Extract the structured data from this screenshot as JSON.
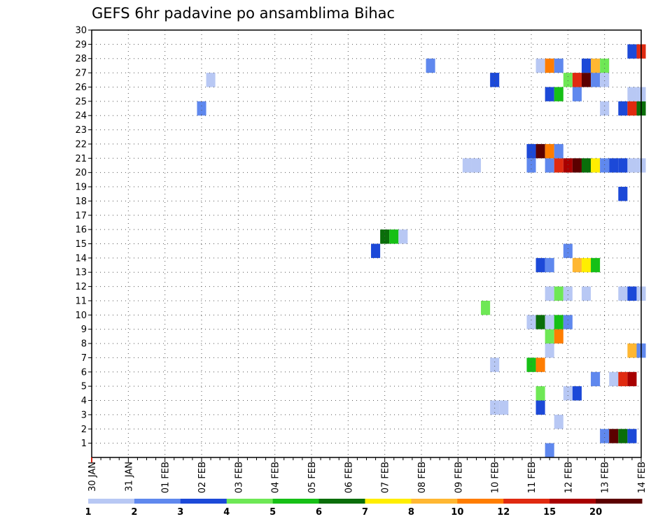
{
  "chart_data": {
    "type": "heatmap",
    "title": "GEFS 6hr padavine po ansamblima Bihac",
    "x_tick_labels": [
      "30 JAN",
      "31 JAN",
      "01 FEB",
      "02 FEB",
      "03 FEB",
      "04 FEB",
      "05 FEB",
      "06 FEB",
      "07 FEB",
      "08 FEB",
      "09 FEB",
      "10 FEB",
      "11 FEB",
      "12 FEB",
      "13 FEB",
      "14 FEB"
    ],
    "y_tick_labels": [
      "1",
      "2",
      "3",
      "4",
      "5",
      "6",
      "7",
      "8",
      "9",
      "10",
      "11",
      "12",
      "13",
      "14",
      "15",
      "16",
      "17",
      "18",
      "19",
      "20",
      "21",
      "22",
      "23",
      "24",
      "25",
      "26",
      "27",
      "28",
      "29",
      "30"
    ],
    "xlim": [
      0,
      60
    ],
    "ylim": [
      0,
      30
    ],
    "step": "6hr",
    "grid": true,
    "legend": {
      "levels": [
        "1",
        "2",
        "3",
        "4",
        "5",
        "6",
        "7",
        "8",
        "10",
        "12",
        "15",
        "20"
      ],
      "colors": [
        "#b8c8f4",
        "#5f88ee",
        "#1c49d8",
        "#6ee855",
        "#16c016",
        "#0a6e0a",
        "#ffee00",
        "#ffb732",
        "#ff7d00",
        "#e02a10",
        "#a80000",
        "#5c0000"
      ],
      "placement": "bottom"
    },
    "cells": [
      {
        "t": 50,
        "m": 0,
        "c": 1
      },
      {
        "t": 56,
        "m": 1,
        "c": 1
      },
      {
        "t": 57,
        "m": 1,
        "c": 11
      },
      {
        "t": 58,
        "m": 1,
        "c": 5
      },
      {
        "t": 59,
        "m": 1,
        "c": 2
      },
      {
        "t": 51,
        "m": 2,
        "c": 0
      },
      {
        "t": 44,
        "m": 3,
        "c": 0
      },
      {
        "t": 45,
        "m": 3,
        "c": 0
      },
      {
        "t": 49,
        "m": 3,
        "c": 2
      },
      {
        "t": 49,
        "m": 4,
        "c": 3
      },
      {
        "t": 52,
        "m": 4,
        "c": 0
      },
      {
        "t": 53,
        "m": 4,
        "c": 2
      },
      {
        "t": 55,
        "m": 5,
        "c": 1
      },
      {
        "t": 57,
        "m": 5,
        "c": 0
      },
      {
        "t": 58,
        "m": 5,
        "c": 9
      },
      {
        "t": 59,
        "m": 5,
        "c": 10
      },
      {
        "t": 44,
        "m": 6,
        "c": 0
      },
      {
        "t": 48,
        "m": 6,
        "c": 4
      },
      {
        "t": 49,
        "m": 6,
        "c": 8
      },
      {
        "t": 50,
        "m": 7,
        "c": 0
      },
      {
        "t": 59,
        "m": 7,
        "c": 7
      },
      {
        "t": 60,
        "m": 7,
        "c": 1
      },
      {
        "t": 50,
        "m": 8,
        "c": 3
      },
      {
        "t": 51,
        "m": 8,
        "c": 8
      },
      {
        "t": 48,
        "m": 9,
        "c": 0
      },
      {
        "t": 49,
        "m": 9,
        "c": 5
      },
      {
        "t": 50,
        "m": 9,
        "c": 0
      },
      {
        "t": 51,
        "m": 9,
        "c": 4
      },
      {
        "t": 52,
        "m": 9,
        "c": 1
      },
      {
        "t": 43,
        "m": 10,
        "c": 3
      },
      {
        "t": 50,
        "m": 11,
        "c": 0
      },
      {
        "t": 51,
        "m": 11,
        "c": 3
      },
      {
        "t": 52,
        "m": 11,
        "c": 0
      },
      {
        "t": 54,
        "m": 11,
        "c": 0
      },
      {
        "t": 58,
        "m": 11,
        "c": 0
      },
      {
        "t": 59,
        "m": 11,
        "c": 2
      },
      {
        "t": 60,
        "m": 11,
        "c": 0
      },
      {
        "t": 49,
        "m": 13,
        "c": 2
      },
      {
        "t": 50,
        "m": 13,
        "c": 1
      },
      {
        "t": 53,
        "m": 13,
        "c": 7
      },
      {
        "t": 54,
        "m": 13,
        "c": 6
      },
      {
        "t": 55,
        "m": 13,
        "c": 4
      },
      {
        "t": 31,
        "m": 14,
        "c": 2
      },
      {
        "t": 52,
        "m": 14,
        "c": 1
      },
      {
        "t": 32,
        "m": 15,
        "c": 5
      },
      {
        "t": 33,
        "m": 15,
        "c": 4
      },
      {
        "t": 34,
        "m": 15,
        "c": 0
      },
      {
        "t": 58,
        "m": 18,
        "c": 2
      },
      {
        "t": 41,
        "m": 20,
        "c": 0
      },
      {
        "t": 42,
        "m": 20,
        "c": 0
      },
      {
        "t": 48,
        "m": 20,
        "c": 1
      },
      {
        "t": 50,
        "m": 20,
        "c": 1
      },
      {
        "t": 51,
        "m": 20,
        "c": 9
      },
      {
        "t": 52,
        "m": 20,
        "c": 10
      },
      {
        "t": 53,
        "m": 20,
        "c": 11
      },
      {
        "t": 54,
        "m": 20,
        "c": 5
      },
      {
        "t": 55,
        "m": 20,
        "c": 6
      },
      {
        "t": 56,
        "m": 20,
        "c": 1
      },
      {
        "t": 57,
        "m": 20,
        "c": 2
      },
      {
        "t": 58,
        "m": 20,
        "c": 2
      },
      {
        "t": 59,
        "m": 20,
        "c": 0
      },
      {
        "t": 60,
        "m": 20,
        "c": 0
      },
      {
        "t": 48,
        "m": 21,
        "c": 2
      },
      {
        "t": 49,
        "m": 21,
        "c": 11
      },
      {
        "t": 50,
        "m": 21,
        "c": 8
      },
      {
        "t": 51,
        "m": 21,
        "c": 1
      },
      {
        "t": 12,
        "m": 24,
        "c": 1
      },
      {
        "t": 56,
        "m": 24,
        "c": 0
      },
      {
        "t": 58,
        "m": 24,
        "c": 2
      },
      {
        "t": 59,
        "m": 24,
        "c": 9
      },
      {
        "t": 60,
        "m": 24,
        "c": 5
      },
      {
        "t": 50,
        "m": 25,
        "c": 2
      },
      {
        "t": 51,
        "m": 25,
        "c": 4
      },
      {
        "t": 53,
        "m": 25,
        "c": 1
      },
      {
        "t": 59,
        "m": 25,
        "c": 0
      },
      {
        "t": 60,
        "m": 25,
        "c": 0
      },
      {
        "t": 13,
        "m": 26,
        "c": 0
      },
      {
        "t": 44,
        "m": 26,
        "c": 2
      },
      {
        "t": 52,
        "m": 26,
        "c": 3
      },
      {
        "t": 53,
        "m": 26,
        "c": 9
      },
      {
        "t": 54,
        "m": 26,
        "c": 11
      },
      {
        "t": 55,
        "m": 26,
        "c": 1
      },
      {
        "t": 56,
        "m": 26,
        "c": 0
      },
      {
        "t": 37,
        "m": 27,
        "c": 1
      },
      {
        "t": 49,
        "m": 27,
        "c": 0
      },
      {
        "t": 50,
        "m": 27,
        "c": 8
      },
      {
        "t": 51,
        "m": 27,
        "c": 1
      },
      {
        "t": 54,
        "m": 27,
        "c": 2
      },
      {
        "t": 55,
        "m": 27,
        "c": 7
      },
      {
        "t": 56,
        "m": 27,
        "c": 3
      },
      {
        "t": 59,
        "m": 28,
        "c": 2
      },
      {
        "t": 60,
        "m": 28,
        "c": 9
      }
    ]
  }
}
